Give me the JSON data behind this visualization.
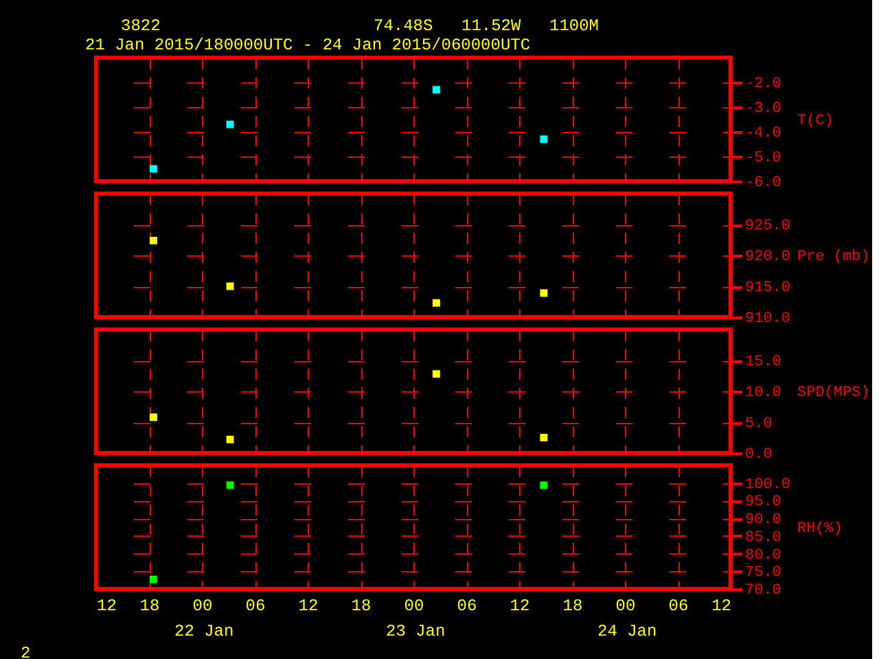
{
  "chart_data": [
    {
      "type": "scatter",
      "title": "3822",
      "subtitle": "21 Jan 2015/180000UTC - 24 Jan 2015/060000UTC",
      "annotations": [
        "74.48S",
        "11.52W",
        "1100M"
      ],
      "ylabel": "T(C)",
      "x": [
        "2015-01-21T18:30",
        "2015-01-22T03:12",
        "2015-01-23T02:36",
        "2015-01-23T14:48"
      ],
      "series": [
        {
          "color": "#00ffff",
          "values": [
            -5.5,
            -3.7,
            -2.3,
            -4.3
          ]
        }
      ],
      "xlim": [
        "2015-01-21T12:00",
        "2015-01-24T12:00"
      ],
      "ylim": [
        -6,
        -1
      ],
      "yticks": [
        {
          "value": -6,
          "label": "-6.0"
        },
        {
          "value": -5,
          "label": "-5.0"
        },
        {
          "value": -4,
          "label": "-4.0"
        },
        {
          "value": -3,
          "label": "-3.0"
        },
        {
          "value": -2,
          "label": "-2.0"
        }
      ],
      "marker": "square",
      "grid": true,
      "tick_labels": "y"
    },
    {
      "type": "scatter",
      "ylabel": "Pre (mb)",
      "x": [
        "2015-01-21T18:30",
        "2015-01-22T03:12",
        "2015-01-23T02:36",
        "2015-01-23T14:48"
      ],
      "series": [
        {
          "color": "#ffff00",
          "values": [
            922.4,
            915,
            912.3,
            913.9
          ]
        }
      ],
      "xlim": [
        "2015-01-21T12:00",
        "2015-01-24T12:00"
      ],
      "ylim": [
        910,
        930
      ],
      "yticks": [
        {
          "value": 910,
          "label": "910.0"
        },
        {
          "value": 915,
          "label": "915.0"
        },
        {
          "value": 920,
          "label": "920.0"
        },
        {
          "value": 925,
          "label": "925.0"
        }
      ],
      "marker": "square",
      "grid": true,
      "tick_labels": "y"
    },
    {
      "type": "scatter",
      "ylabel": "SPD(MPS)",
      "x": [
        "2015-01-21T18:30",
        "2015-01-22T03:12",
        "2015-01-23T02:36",
        "2015-01-23T14:48"
      ],
      "series": [
        {
          "color": "#ffff00",
          "values": [
            5.8,
            2.2,
            12.8,
            2.5
          ]
        }
      ],
      "xlim": [
        "2015-01-21T12:00",
        "2015-01-24T12:00"
      ],
      "ylim": [
        0,
        20
      ],
      "yticks": [
        {
          "value": 0,
          "label": "0.0"
        },
        {
          "value": 5,
          "label": "5.0"
        },
        {
          "value": 10,
          "label": "10.0"
        },
        {
          "value": 15,
          "label": "15.0"
        }
      ],
      "marker": "square",
      "grid": true,
      "tick_labels": "y"
    },
    {
      "type": "scatter",
      "ylabel": "RH(%)",
      "annotations": [
        "2",
        "22 Jan",
        "23 Jan",
        "24 Jan"
      ],
      "x": [
        "2015-01-21T18:30",
        "2015-01-22T03:12",
        "2015-01-23T02:36",
        "2015-01-23T14:48"
      ],
      "series": [
        {
          "color": "#00ff00",
          "values": [
            72.7,
            99.4,
            null,
            99.4
          ]
        }
      ],
      "xlim": [
        "2015-01-21T12:00",
        "2015-01-24T12:00"
      ],
      "ylim": [
        70,
        105
      ],
      "yticks": [
        {
          "value": 70,
          "label": "70.0"
        },
        {
          "value": 75,
          "label": "75.0"
        },
        {
          "value": 80,
          "label": "80.0"
        },
        {
          "value": 85,
          "label": "85.0"
        },
        {
          "value": 90,
          "label": "90.0"
        },
        {
          "value": 95,
          "label": "95.0"
        },
        {
          "value": 100,
          "label": "100.0"
        }
      ],
      "xticks": [
        {
          "value": "2015-01-21T12:00",
          "label": "12"
        },
        {
          "value": "2015-01-21T18:00",
          "label": "18"
        },
        {
          "value": "2015-01-22T00:00",
          "label": "00"
        },
        {
          "value": "2015-01-22T06:00",
          "label": "06"
        },
        {
          "value": "2015-01-22T12:00",
          "label": "12"
        },
        {
          "value": "2015-01-22T18:00",
          "label": "18"
        },
        {
          "value": "2015-01-23T00:00",
          "label": "00"
        },
        {
          "value": "2015-01-23T06:00",
          "label": "06"
        },
        {
          "value": "2015-01-23T12:00",
          "label": "12"
        },
        {
          "value": "2015-01-23T18:00",
          "label": "18"
        },
        {
          "value": "2015-01-24T00:00",
          "label": "00"
        },
        {
          "value": "2015-01-24T06:00",
          "label": "06"
        },
        {
          "value": "2015-01-24T12:00",
          "label": "12"
        }
      ],
      "marker": "square",
      "grid": true
    }
  ]
}
